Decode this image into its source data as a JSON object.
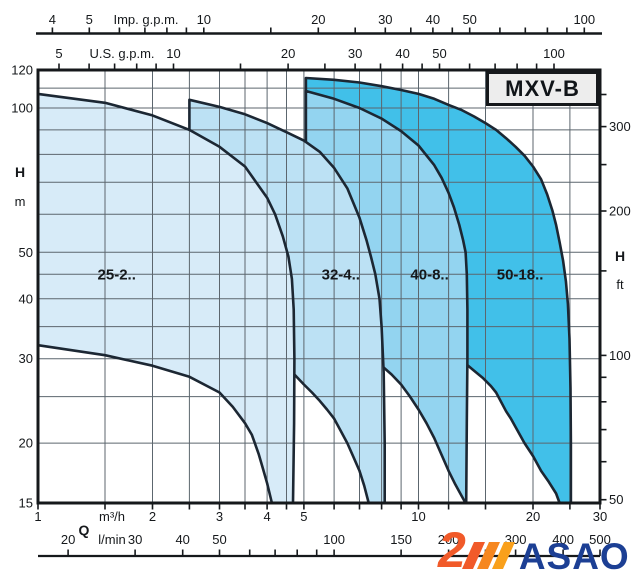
{
  "title": "MXV-B",
  "watermark": {
    "text": "ASAO",
    "accent_color": "#f15a29",
    "text_color": "#1c3f94"
  },
  "chart_data": {
    "type": "area",
    "title": "MXV-B",
    "x_scale": "log",
    "y_scale": "log",
    "x_range_m3h": [
      1,
      30
    ],
    "y_range_m": [
      15,
      120
    ],
    "grid": true,
    "x_gridlines_m3h": [
      1.5,
      2,
      2.5,
      3,
      3.5,
      4,
      4.5,
      5,
      6,
      7,
      8,
      9,
      10,
      12,
      15,
      20,
      25
    ],
    "y_gridlines_m": [
      110,
      100,
      90,
      80,
      70,
      60,
      50,
      45,
      40,
      35,
      30,
      25,
      20
    ],
    "axes": {
      "top_imp": {
        "label": "Imp. g.p.m.",
        "ticks": [
          4,
          5,
          6,
          7,
          8,
          9,
          10,
          15,
          20,
          25,
          30,
          35,
          40,
          45,
          50,
          60,
          70,
          80,
          90,
          100
        ],
        "labels": [
          4,
          5,
          10,
          20,
          30,
          40,
          50,
          100
        ]
      },
      "top_us": {
        "label": "U.S. g.p.m.",
        "ticks": [
          5,
          6,
          7,
          8,
          9,
          10,
          15,
          20,
          25,
          30,
          35,
          40,
          45,
          50,
          60,
          70,
          80,
          90,
          100
        ],
        "labels": [
          5,
          10,
          20,
          30,
          40,
          50,
          100
        ]
      },
      "left_m": {
        "label": "H",
        "unit": "m",
        "labels": [
          120,
          100,
          50,
          40,
          30,
          20,
          15
        ]
      },
      "right_ft": {
        "label": "H",
        "unit": "ft",
        "ticks": [
          350,
          300,
          250,
          200,
          150,
          100,
          90,
          80,
          70,
          60,
          50
        ],
        "labels": [
          300,
          200,
          100,
          50
        ]
      },
      "bottom_m3h": {
        "label": "Q",
        "unit": "m³/h",
        "ticks": [
          1,
          1.5,
          2,
          2.5,
          3,
          3.5,
          4,
          4.5,
          5,
          6,
          7,
          8,
          9,
          10,
          12,
          15,
          20,
          25,
          30
        ],
        "labels": [
          1,
          2,
          3,
          4,
          5,
          10,
          20,
          30
        ]
      },
      "bottom_lmin": {
        "unit": "l/min",
        "ticks": [
          20,
          30,
          40,
          50,
          60,
          70,
          80,
          90,
          100,
          150,
          200,
          250,
          300,
          400,
          500
        ],
        "labels": [
          20,
          30,
          40,
          50,
          100,
          150,
          200,
          300,
          400,
          500
        ]
      }
    },
    "series": [
      {
        "label": "25-2..",
        "color": "#d7ebf8",
        "label_pos": [
          1.61,
          45
        ],
        "outline": [
          [
            1,
            107
          ],
          [
            1.5,
            102.5
          ],
          [
            2,
            96.5
          ],
          [
            2.5,
            90
          ],
          [
            3,
            83
          ],
          [
            3.5,
            75.5
          ],
          [
            4,
            65
          ],
          [
            4.2,
            60
          ],
          [
            4.4,
            54
          ],
          [
            4.55,
            49
          ],
          [
            4.65,
            44
          ],
          [
            4.7,
            38
          ],
          [
            4.72,
            30
          ],
          [
            4.71,
            22
          ],
          [
            4.68,
            15
          ],
          [
            4.12,
            15
          ],
          [
            4.0,
            16.5
          ],
          [
            3.9,
            17.7
          ],
          [
            3.8,
            19
          ],
          [
            3.65,
            20.8
          ],
          [
            3.5,
            22
          ],
          [
            3.25,
            23.8
          ],
          [
            3,
            25.5
          ],
          [
            2.5,
            27.5
          ],
          [
            2,
            29
          ],
          [
            1.5,
            30.5
          ],
          [
            1,
            32
          ]
        ]
      },
      {
        "label": "32-4..",
        "color": "#bce1f4",
        "label_pos": [
          6.25,
          45
        ],
        "outline": [
          [
            2.5,
            104
          ],
          [
            3,
            100.5
          ],
          [
            3.5,
            97
          ],
          [
            4,
            93
          ],
          [
            4.5,
            89
          ],
          [
            5,
            85.5
          ],
          [
            5.5,
            81
          ],
          [
            6,
            75
          ],
          [
            6.5,
            68
          ],
          [
            7,
            59
          ],
          [
            7.3,
            53
          ],
          [
            7.5,
            49
          ],
          [
            7.7,
            45
          ],
          [
            7.9,
            40
          ],
          [
            8.0,
            35
          ],
          [
            8.1,
            28
          ],
          [
            8.15,
            20
          ],
          [
            8.15,
            15
          ],
          [
            7.4,
            15
          ],
          [
            7.2,
            16.3
          ],
          [
            7,
            17.5
          ],
          [
            6.75,
            18.7
          ],
          [
            6.5,
            20
          ],
          [
            6.25,
            21.2
          ],
          [
            6,
            22.5
          ],
          [
            5.75,
            23.5
          ],
          [
            5.5,
            24.5
          ],
          [
            5.25,
            25.5
          ],
          [
            5,
            26.5
          ],
          [
            4.68,
            28
          ],
          [
            4,
            28.8
          ],
          [
            3.2,
            29.3
          ],
          [
            2.5,
            29.6
          ]
        ]
      },
      {
        "label": "40-8..",
        "color": "#93d4f0",
        "label_pos": [
          10.7,
          45
        ],
        "outline": [
          [
            5.06,
            108.5
          ],
          [
            6,
            104.5
          ],
          [
            7,
            100
          ],
          [
            8,
            95
          ],
          [
            9,
            89.5
          ],
          [
            10,
            83.5
          ],
          [
            11,
            76
          ],
          [
            11.5,
            71.5
          ],
          [
            12,
            66.5
          ],
          [
            12.4,
            62
          ],
          [
            12.8,
            57
          ],
          [
            13.1,
            53
          ],
          [
            13.3,
            50
          ],
          [
            13.4,
            45
          ],
          [
            13.45,
            38
          ],
          [
            13.45,
            30
          ],
          [
            13.4,
            22
          ],
          [
            13.35,
            15
          ],
          [
            13.3,
            15
          ],
          [
            13,
            15.5
          ],
          [
            12.5,
            16.4
          ],
          [
            12,
            17.5
          ],
          [
            11.5,
            18.9
          ],
          [
            11,
            20.5
          ],
          [
            10.5,
            22
          ],
          [
            10,
            23.5
          ],
          [
            9.5,
            25
          ],
          [
            9,
            26.5
          ],
          [
            8.5,
            27.8
          ],
          [
            8,
            29
          ],
          [
            7,
            29.8
          ],
          [
            6,
            30.3
          ],
          [
            5.06,
            30.6
          ]
        ]
      },
      {
        "label": "50-18..",
        "color": "#41c0e9",
        "label_pos": [
          18.5,
          45
        ],
        "outline": [
          [
            5.06,
            115.5
          ],
          [
            6,
            114.5
          ],
          [
            7,
            113
          ],
          [
            8,
            111
          ],
          [
            9,
            109
          ],
          [
            10,
            107
          ],
          [
            11,
            104.5
          ],
          [
            12,
            101.5
          ],
          [
            13,
            99
          ],
          [
            14,
            96
          ],
          [
            15,
            93
          ],
          [
            16,
            90
          ],
          [
            17,
            86.5
          ],
          [
            18,
            83
          ],
          [
            19,
            79.5
          ],
          [
            20,
            75.5
          ],
          [
            21,
            71
          ],
          [
            21.8,
            66
          ],
          [
            22.5,
            61
          ],
          [
            23,
            57
          ],
          [
            23.5,
            52.5
          ],
          [
            24,
            48
          ],
          [
            24.4,
            43.5
          ],
          [
            24.7,
            39
          ],
          [
            24.95,
            33
          ],
          [
            25.1,
            26
          ],
          [
            25.15,
            20
          ],
          [
            25.15,
            15
          ],
          [
            23.5,
            15
          ],
          [
            23,
            15.7
          ],
          [
            22,
            16.6
          ],
          [
            21,
            17.5
          ],
          [
            20,
            18.8
          ],
          [
            19,
            20
          ],
          [
            18,
            21.6
          ],
          [
            17.5,
            22.5
          ],
          [
            17,
            23.3
          ],
          [
            16,
            25.5
          ],
          [
            15.5,
            26.3
          ],
          [
            14.8,
            27.3
          ],
          [
            14,
            28.3
          ],
          [
            13.3,
            29.3
          ],
          [
            12,
            30
          ],
          [
            10,
            31
          ],
          [
            8,
            32
          ],
          [
            6.5,
            32.6
          ],
          [
            5.06,
            33
          ]
        ]
      }
    ]
  }
}
